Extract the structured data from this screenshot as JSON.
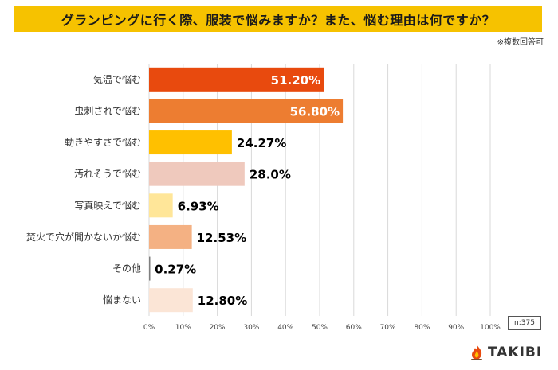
{
  "header": {
    "title": "グランピングに行く際、服装で悩みますか？また、悩む理由は何ですか？",
    "note": "※複数回答可"
  },
  "footer": {
    "sample_size": "n:375",
    "brand": "TAKIBI"
  },
  "chart_data": {
    "type": "bar",
    "orientation": "horizontal",
    "title": "グランピングに行く際、服装で悩みますか？また、悩む理由は何ですか？",
    "categories": [
      "気温で悩む",
      "虫刺されで悩む",
      "動きやすさで悩む",
      "汚れそうで悩む",
      "写真映えで悩む",
      "焚火で穴が開かないか悩む",
      "その他",
      "悩まない"
    ],
    "values": [
      51.2,
      56.8,
      24.27,
      28.0,
      6.93,
      12.53,
      0.27,
      12.8
    ],
    "value_labels": [
      "51.20%",
      "56.80%",
      "24.27%",
      "28.0%",
      "6.93%",
      "12.53%",
      "0.27%",
      "12.80%"
    ],
    "colors": [
      "#e84a0e",
      "#ed7d31",
      "#ffc000",
      "#efc9bd",
      "#ffe699",
      "#f4b183",
      "#7f7f7f",
      "#fbe5d6"
    ],
    "label_colors": [
      "#ffffff",
      "#ffffff",
      "#000000",
      "#000000",
      "#000000",
      "#000000",
      "#000000",
      "#000000"
    ],
    "xlim": [
      0,
      100
    ],
    "xticks": [
      0,
      10,
      20,
      30,
      40,
      50,
      60,
      70,
      80,
      90,
      100
    ],
    "xtick_labels": [
      "0%",
      "10%",
      "20%",
      "30%",
      "40%",
      "50%",
      "60%",
      "70%",
      "80%",
      "90%",
      "100%"
    ],
    "grid": true
  }
}
